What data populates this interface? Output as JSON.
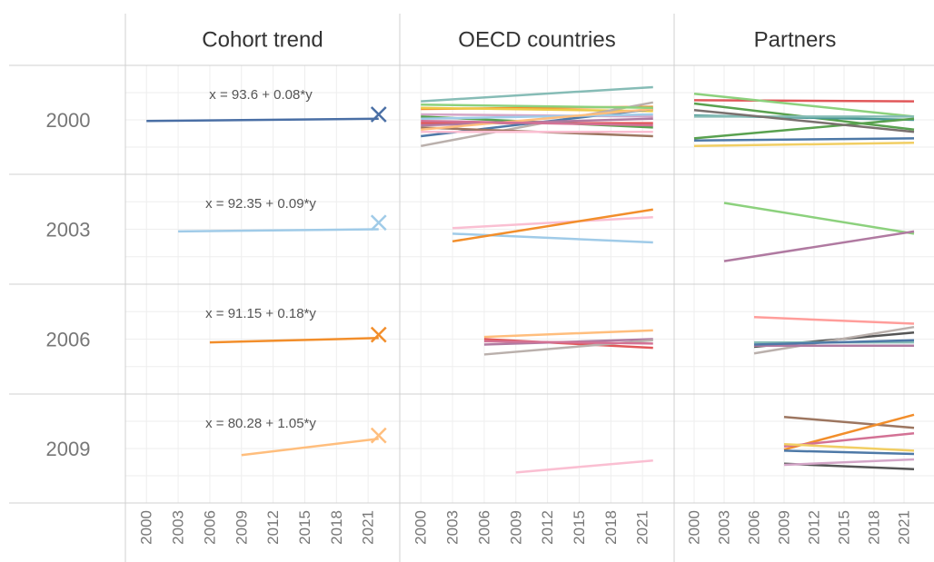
{
  "chart_data": {
    "type": "line",
    "column_titles": [
      "Cohort trend",
      "OECD countries",
      "Partners"
    ],
    "row_labels": [
      "2000",
      "2003",
      "2006",
      "2009"
    ],
    "xlim": [
      1998,
      2024
    ],
    "xticks": [
      2000,
      2003,
      2006,
      2009,
      2012,
      2015,
      2018,
      2021
    ],
    "ylim": [
      0,
      100
    ],
    "yticks": [
      25,
      50,
      75
    ],
    "grid": true,
    "panels": [
      {
        "row": 0,
        "col": 0,
        "annotation": "x = 93.6 + 0.08*y",
        "marker": {
          "x": 2022,
          "value": 55,
          "color": "#4a6fa5"
        },
        "series": [
          {
            "color": "#4a6fa5",
            "x": [
              2000,
              2022
            ],
            "values": [
              49,
              51
            ]
          }
        ]
      },
      {
        "row": 0,
        "col": 1,
        "series": [
          {
            "color": "#86bcb6",
            "x": [
              2000,
              2022
            ],
            "values": [
              67,
              80
            ]
          },
          {
            "color": "#f28e2b",
            "x": [
              2000,
              2022
            ],
            "values": [
              60,
              62
            ]
          },
          {
            "color": "#edc948",
            "x": [
              2000,
              2022
            ],
            "values": [
              61,
              58
            ]
          },
          {
            "color": "#d4a6c8",
            "x": [
              2000,
              2022
            ],
            "values": [
              55,
              53
            ]
          },
          {
            "color": "#e15759",
            "x": [
              2000,
              2022
            ],
            "values": [
              47,
              47
            ]
          },
          {
            "color": "#bab0ac",
            "x": [
              2000,
              2022
            ],
            "values": [
              26,
              66
            ]
          },
          {
            "color": "#4e79a7",
            "x": [
              2000,
              2022
            ],
            "values": [
              35,
              60
            ]
          },
          {
            "color": "#9d7660",
            "x": [
              2000,
              2022
            ],
            "values": [
              43,
              35
            ]
          },
          {
            "color": "#59a14f",
            "x": [
              2000,
              2022
            ],
            "values": [
              53,
              43
            ]
          },
          {
            "color": "#fabfd2",
            "x": [
              2000,
              2022
            ],
            "values": [
              39,
              39
            ]
          },
          {
            "color": "#b07aa1",
            "x": [
              2000,
              2022
            ],
            "values": [
              45,
              51
            ]
          },
          {
            "color": "#a0cbe8",
            "x": [
              2000,
              2022
            ],
            "values": [
              51,
              55
            ]
          },
          {
            "color": "#ffbe7d",
            "x": [
              2000,
              2022
            ],
            "values": [
              41,
              60
            ]
          },
          {
            "color": "#8cd17d",
            "x": [
              2000,
              2022
            ],
            "values": [
              64,
              61
            ]
          },
          {
            "color": "#d37295",
            "x": [
              2000,
              2022
            ],
            "values": [
              49,
              45
            ]
          }
        ]
      },
      {
        "row": 0,
        "col": 2,
        "series": [
          {
            "color": "#e15759",
            "x": [
              2000,
              2022
            ],
            "values": [
              68,
              67
            ]
          },
          {
            "color": "#8cd17d",
            "x": [
              2000,
              2022
            ],
            "values": [
              74,
              53
            ]
          },
          {
            "color": "#59a14f",
            "x": [
              2000,
              2022
            ],
            "values": [
              65,
              41
            ]
          },
          {
            "color": "#499894",
            "x": [
              2000,
              2022
            ],
            "values": [
              54,
              50
            ]
          },
          {
            "color": "#86bcb6",
            "x": [
              2000,
              2022
            ],
            "values": [
              53,
              53
            ]
          },
          {
            "color": "#59a14f",
            "x": [
              2000,
              2022
            ],
            "values": [
              33,
              51
            ]
          },
          {
            "color": "#4e79a7",
            "x": [
              2000,
              2022
            ],
            "values": [
              31,
              33
            ]
          },
          {
            "color": "#f1ce63",
            "x": [
              2000,
              2022
            ],
            "values": [
              26,
              29
            ]
          },
          {
            "color": "#79706e",
            "x": [
              2000,
              2022
            ],
            "values": [
              59,
              39
            ]
          }
        ]
      },
      {
        "row": 1,
        "col": 0,
        "annotation": "x = 92.35 + 0.09*y",
        "marker": {
          "x": 2022,
          "value": 56,
          "color": "#a0cbe8"
        },
        "series": [
          {
            "color": "#a0cbe8",
            "x": [
              2003,
              2022
            ],
            "values": [
              48,
              50
            ]
          }
        ]
      },
      {
        "row": 1,
        "col": 1,
        "series": [
          {
            "color": "#fabfd2",
            "x": [
              2003,
              2022
            ],
            "values": [
              51,
              61
            ]
          },
          {
            "color": "#a0cbe8",
            "x": [
              2003,
              2022
            ],
            "values": [
              46,
              38
            ]
          },
          {
            "color": "#f28e2b",
            "x": [
              2003,
              2022
            ],
            "values": [
              39,
              68
            ]
          }
        ]
      },
      {
        "row": 1,
        "col": 2,
        "series": [
          {
            "color": "#8cd17d",
            "x": [
              2003,
              2022
            ],
            "values": [
              74,
              46
            ]
          },
          {
            "color": "#b07aa1",
            "x": [
              2003,
              2022
            ],
            "values": [
              21,
              48
            ]
          }
        ]
      },
      {
        "row": 2,
        "col": 0,
        "annotation": "x = 91.15 + 0.18*y",
        "marker": {
          "x": 2022,
          "value": 54,
          "color": "#f28e2b"
        },
        "series": [
          {
            "color": "#f28e2b",
            "x": [
              2006,
              2022
            ],
            "values": [
              47,
              51
            ]
          }
        ]
      },
      {
        "row": 2,
        "col": 1,
        "series": [
          {
            "color": "#ffbe7d",
            "x": [
              2006,
              2022
            ],
            "values": [
              52,
              58
            ]
          },
          {
            "color": "#e15759",
            "x": [
              2006,
              2022
            ],
            "values": [
              50,
              42
            ]
          },
          {
            "color": "#b07aa1",
            "x": [
              2006,
              2022
            ],
            "values": [
              45,
              50
            ]
          },
          {
            "color": "#bab0ac",
            "x": [
              2006,
              2022
            ],
            "values": [
              36,
              49
            ]
          },
          {
            "color": "#d37295",
            "x": [
              2006,
              2022
            ],
            "values": [
              48,
              46
            ]
          }
        ]
      },
      {
        "row": 2,
        "col": 2,
        "series": [
          {
            "color": "#ff9d9a",
            "x": [
              2006,
              2022
            ],
            "values": [
              70,
              64
            ]
          },
          {
            "color": "#555555",
            "x": [
              2006,
              2022
            ],
            "values": [
              43,
              56
            ]
          },
          {
            "color": "#bab0ac",
            "x": [
              2006,
              2022
            ],
            "values": [
              37,
              61
            ]
          },
          {
            "color": "#86bcb6",
            "x": [
              2006,
              2022
            ],
            "values": [
              47,
              47
            ]
          },
          {
            "color": "#b07aa1",
            "x": [
              2006,
              2022
            ],
            "values": [
              44,
              44
            ]
          },
          {
            "color": "#4e79a7",
            "x": [
              2006,
              2022
            ],
            "values": [
              45,
              49
            ]
          }
        ]
      },
      {
        "row": 3,
        "col": 0,
        "annotation": "x = 80.28 + 1.05*y",
        "marker": {
          "x": 2022,
          "value": 62,
          "color": "#ffbe7d"
        },
        "series": [
          {
            "color": "#ffbe7d",
            "x": [
              2009,
              2022
            ],
            "values": [
              44,
              59
            ]
          }
        ]
      },
      {
        "row": 3,
        "col": 1,
        "series": [
          {
            "color": "#fabfd2",
            "x": [
              2009,
              2022
            ],
            "values": [
              28,
              39
            ]
          }
        ]
      },
      {
        "row": 3,
        "col": 2,
        "series": [
          {
            "color": "#9d7660",
            "x": [
              2009,
              2022
            ],
            "values": [
              79,
              69
            ]
          },
          {
            "color": "#f28e2b",
            "x": [
              2009,
              2022
            ],
            "values": [
              49,
              81
            ]
          },
          {
            "color": "#d37295",
            "x": [
              2009,
              2022
            ],
            "values": [
              52,
              64
            ]
          },
          {
            "color": "#f1ce63",
            "x": [
              2009,
              2022
            ],
            "values": [
              54,
              48
            ]
          },
          {
            "color": "#4e79a7",
            "x": [
              2009,
              2022
            ],
            "values": [
              48,
              45
            ]
          },
          {
            "color": "#555555",
            "x": [
              2009,
              2022
            ],
            "values": [
              36,
              31
            ]
          },
          {
            "color": "#d4a6c8",
            "x": [
              2009,
              2022
            ],
            "values": [
              35,
              40
            ]
          }
        ]
      }
    ]
  }
}
